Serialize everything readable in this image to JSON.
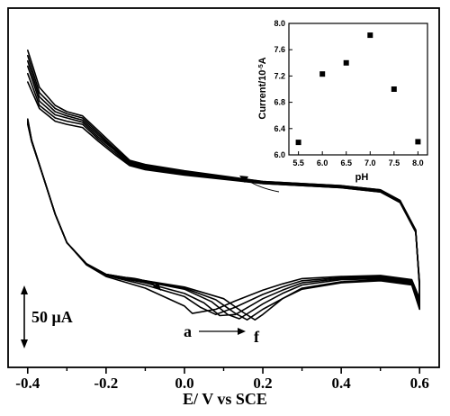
{
  "chart_data": [
    {
      "type": "line",
      "xlabel": "E/ V vs SCE",
      "ylabel": "",
      "xlim": [
        -0.45,
        0.65
      ],
      "x_ticks": [
        -0.4,
        -0.2,
        0.0,
        0.2,
        0.4,
        0.6
      ],
      "x_tick_labels": [
        "-0.4",
        "-0.2",
        "0.0",
        "0.2",
        "0.4",
        "0.6"
      ],
      "y_ticks_shown": false,
      "scale_bar_label": "50 μA",
      "arrow_label_start": "a",
      "arrow_label_end": "f",
      "grid": false,
      "series": [
        {
          "x": [
            -0.4,
            -0.37,
            -0.33,
            -0.3,
            -0.26,
            -0.22,
            -0.18,
            -0.14,
            -0.1,
            0.0,
            0.2,
            0.4,
            0.5,
            0.55,
            0.59,
            0.6,
            0.6,
            0.58,
            0.5,
            0.4,
            0.3,
            0.25,
            0.2,
            0.18,
            0.15,
            0.1,
            0.0,
            -0.1,
            -0.2,
            -0.25,
            -0.3,
            -0.33,
            -0.36,
            -0.39,
            -0.4
          ],
          "y": [
            150,
            115,
            98,
            92,
            88,
            74,
            60,
            46,
            42,
            36,
            26,
            22,
            18,
            8,
            -20,
            -75,
            -95,
            -72,
            -68,
            -70,
            -76,
            -85,
            -100,
            -105,
            -98,
            -85,
            -74,
            -68,
            -62,
            -52,
            -32,
            -5,
            30,
            65,
            85
          ]
        },
        {
          "x": [
            -0.4,
            -0.37,
            -0.33,
            -0.3,
            -0.26,
            -0.22,
            -0.18,
            -0.14,
            -0.1,
            0.0,
            0.2,
            0.4,
            0.5,
            0.55,
            0.59,
            0.6,
            0.6,
            0.58,
            0.5,
            0.4,
            0.3,
            0.25,
            0.2,
            0.16,
            0.13,
            0.08,
            0.0,
            -0.1,
            -0.2,
            -0.25,
            -0.3,
            -0.33,
            -0.36,
            -0.39,
            -0.4
          ],
          "y": [
            145,
            110,
            95,
            90,
            86,
            72,
            58,
            45,
            41,
            35,
            26,
            22,
            18,
            8,
            -20,
            -74,
            -93,
            -71,
            -67,
            -69,
            -75,
            -85,
            -95,
            -105,
            -99,
            -86,
            -75,
            -68,
            -62,
            -52,
            -32,
            -5,
            30,
            65,
            84
          ]
        },
        {
          "x": [
            -0.4,
            -0.37,
            -0.33,
            -0.3,
            -0.26,
            -0.22,
            -0.18,
            -0.14,
            -0.1,
            0.0,
            0.2,
            0.4,
            0.5,
            0.55,
            0.59,
            0.6,
            0.6,
            0.58,
            0.5,
            0.4,
            0.3,
            0.25,
            0.2,
            0.14,
            0.11,
            0.07,
            0.0,
            -0.1,
            -0.2,
            -0.25,
            -0.3,
            -0.33,
            -0.36,
            -0.39,
            -0.4
          ],
          "y": [
            140,
            106,
            92,
            88,
            84,
            70,
            57,
            44,
            40,
            34,
            25,
            21,
            17,
            7,
            -21,
            -73,
            -91,
            -70,
            -66,
            -67,
            -72,
            -80,
            -90,
            -104,
            -100,
            -88,
            -76,
            -69,
            -62,
            -52,
            -32,
            -5,
            30,
            65,
            83
          ]
        },
        {
          "x": [
            -0.4,
            -0.37,
            -0.33,
            -0.3,
            -0.26,
            -0.22,
            -0.18,
            -0.14,
            -0.1,
            0.0,
            0.2,
            0.4,
            0.5,
            0.55,
            0.59,
            0.6,
            0.6,
            0.58,
            0.5,
            0.4,
            0.3,
            0.25,
            0.2,
            0.13,
            0.09,
            0.05,
            0.0,
            -0.1,
            -0.2,
            -0.25,
            -0.3,
            -0.33,
            -0.36,
            -0.39,
            -0.4
          ],
          "y": [
            135,
            102,
            89,
            86,
            82,
            68,
            56,
            43,
            39,
            34,
            25,
            21,
            17,
            7,
            -21,
            -72,
            -89,
            -69,
            -65,
            -66,
            -70,
            -77,
            -85,
            -100,
            -101,
            -89,
            -80,
            -70,
            -63,
            -52,
            -32,
            -5,
            30,
            64,
            82
          ]
        },
        {
          "x": [
            -0.4,
            -0.37,
            -0.33,
            -0.3,
            -0.26,
            -0.22,
            -0.18,
            -0.14,
            -0.1,
            0.0,
            0.2,
            0.4,
            0.5,
            0.55,
            0.59,
            0.6,
            0.6,
            0.58,
            0.5,
            0.4,
            0.3,
            0.25,
            0.2,
            0.13,
            0.08,
            0.04,
            0.0,
            -0.1,
            -0.2,
            -0.25,
            -0.3,
            -0.33,
            -0.36,
            -0.39,
            -0.4
          ],
          "y": [
            128,
            98,
            86,
            83,
            80,
            66,
            54,
            42,
            38,
            33,
            24,
            20,
            16,
            6,
            -22,
            -71,
            -87,
            -68,
            -64,
            -65,
            -68,
            -74,
            -81,
            -93,
            -100,
            -93,
            -83,
            -72,
            -63,
            -52,
            -32,
            -5,
            30,
            64,
            81
          ]
        },
        {
          "x": [
            -0.4,
            -0.37,
            -0.33,
            -0.3,
            -0.26,
            -0.22,
            -0.18,
            -0.14,
            -0.1,
            0.0,
            0.2,
            0.4,
            0.5,
            0.55,
            0.59,
            0.6,
            0.6,
            0.58,
            0.5,
            0.4,
            0.3,
            0.25,
            0.2,
            0.13,
            0.08,
            0.02,
            0.0,
            -0.1,
            -0.2,
            -0.25,
            -0.3,
            -0.33,
            -0.36,
            -0.39,
            -0.4
          ],
          "y": [
            120,
            95,
            83,
            80,
            77,
            64,
            52,
            41,
            37,
            32,
            24,
            20,
            16,
            6,
            -22,
            -70,
            -85,
            -67,
            -63,
            -64,
            -66,
            -71,
            -77,
            -87,
            -95,
            -99,
            -92,
            -75,
            -64,
            -53,
            -32,
            -5,
            30,
            64,
            80
          ]
        }
      ]
    },
    {
      "type": "scatter",
      "xlabel": "pH",
      "ylabel": "Current/10",
      "ylabel_sup": "-5",
      "ylabel_suffix": "A",
      "xlim": [
        5.3,
        8.2
      ],
      "ylim": [
        6.0,
        8.0
      ],
      "x_ticks": [
        5.5,
        6.0,
        6.5,
        7.0,
        7.5,
        8.0
      ],
      "x_tick_labels": [
        "5.5",
        "6.0",
        "6.5",
        "7.0",
        "7.5",
        "8.0"
      ],
      "y_ticks": [
        6.0,
        6.4,
        6.8,
        7.2,
        7.6,
        8.0
      ],
      "y_tick_labels": [
        "6.0",
        "6.4",
        "6.8",
        "7.2",
        "7.6",
        "8.0"
      ],
      "grid": false,
      "series": [
        {
          "x": [
            5.5,
            6.0,
            6.5,
            7.0,
            7.5,
            8.0
          ],
          "y": [
            6.19,
            7.23,
            7.4,
            7.82,
            7.0,
            6.2
          ]
        }
      ]
    }
  ]
}
